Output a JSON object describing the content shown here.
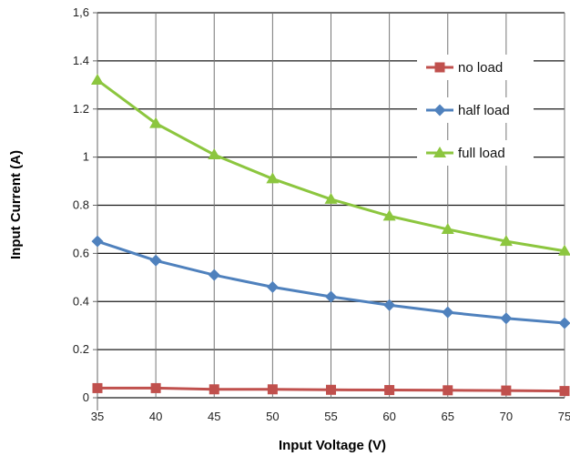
{
  "chart_data": {
    "type": "line",
    "x": [
      35,
      40,
      45,
      50,
      55,
      60,
      65,
      70,
      75
    ],
    "x_ticks": [
      "35",
      "40",
      "45",
      "50",
      "55",
      "60",
      "65",
      "70",
      "75"
    ],
    "y_ticks": [
      "0",
      "0.2",
      "0.4",
      "0.6",
      "0.8",
      "1",
      "1.2",
      "1.4",
      "1,6"
    ],
    "xlabel": "Input Voltage (V)",
    "ylabel": "Input Current (A)",
    "xlim": [
      35,
      75
    ],
    "ylim": [
      0,
      1.6
    ],
    "grid": "on",
    "legend_position": "right",
    "series": [
      {
        "name": "no load",
        "color": "#c0504d",
        "marker": "square",
        "values": [
          0.04,
          0.04,
          0.035,
          0.035,
          0.033,
          0.032,
          0.031,
          0.03,
          0.028
        ]
      },
      {
        "name": "half load",
        "color": "#4f81bd",
        "marker": "diamond",
        "values": [
          0.65,
          0.57,
          0.51,
          0.46,
          0.42,
          0.385,
          0.355,
          0.33,
          0.31
        ]
      },
      {
        "name": "full load",
        "color": "#8cc63f",
        "marker": "triangle",
        "values": [
          1.32,
          1.14,
          1.01,
          0.91,
          0.825,
          0.755,
          0.7,
          0.65,
          0.61
        ]
      }
    ]
  }
}
